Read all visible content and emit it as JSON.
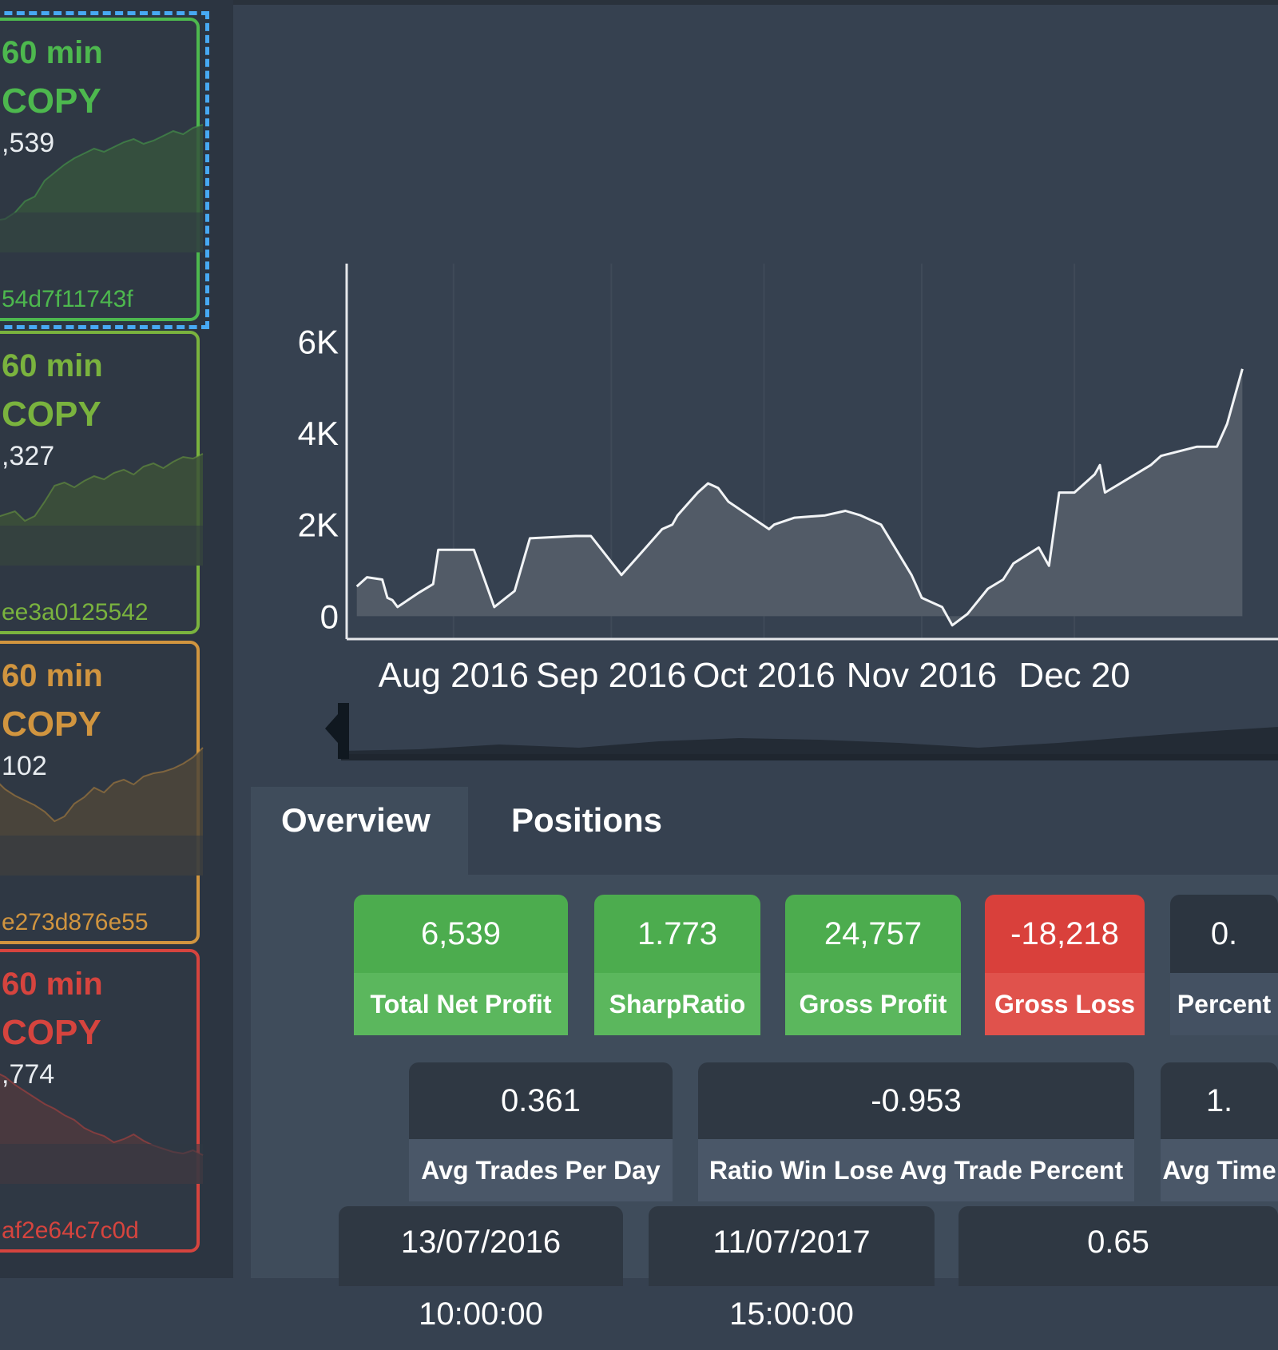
{
  "strategies": [
    {
      "period": "60 min",
      "action": "COPY",
      "profit": ",539",
      "id": "54d7f11743f",
      "color": "#4db84e",
      "fill": "#36533d"
    },
    {
      "period": "60 min",
      "action": "COPY",
      "profit": ",327",
      "id": "ee3a0125542",
      "color": "#7ab33e",
      "fill": "#3c5138"
    },
    {
      "period": "60 min",
      "action": "COPY",
      "profit": "102",
      "id": "e273d876e55",
      "color": "#d1953f",
      "fill": "#4d463a"
    },
    {
      "period": "60 min",
      "action": "COPY",
      "profit": ",774",
      "id": "af2e64c7c0d",
      "color": "#d6443e",
      "fill": "#4d3a3e"
    }
  ],
  "chart_data": {
    "type": "area",
    "yticks": [
      "0",
      "2K",
      "4K",
      "6K"
    ],
    "xticks": [
      "Aug 2016",
      "Sep 2016",
      "Oct 2016",
      "Nov 2016",
      "Dec 20"
    ],
    "ylim": [
      -500,
      7700
    ],
    "x": [
      "2016-07-13",
      "2016-07-15",
      "2016-07-18",
      "2016-07-19",
      "2016-07-20",
      "2016-07-21",
      "2016-07-25",
      "2016-07-28",
      "2016-07-29",
      "2016-08-01",
      "2016-08-05",
      "2016-08-09",
      "2016-08-13",
      "2016-08-16",
      "2016-08-25",
      "2016-08-28",
      "2016-09-03",
      "2016-09-07",
      "2016-09-11",
      "2016-09-13",
      "2016-09-14",
      "2016-09-18",
      "2016-09-20",
      "2016-09-22",
      "2016-09-24",
      "2016-10-02",
      "2016-10-03",
      "2016-10-07",
      "2016-10-13",
      "2016-10-17",
      "2016-10-20",
      "2016-10-24",
      "2016-10-30",
      "2016-11-01",
      "2016-11-03",
      "2016-11-05",
      "2016-11-07",
      "2016-11-10",
      "2016-11-14",
      "2016-11-17",
      "2016-11-19",
      "2016-11-24",
      "2016-11-26",
      "2016-11-28",
      "2016-12-01",
      "2016-12-05",
      "2016-12-06",
      "2016-12-07",
      "2016-12-13",
      "2016-12-16",
      "2016-12-18",
      "2016-12-25",
      "2016-12-29",
      "2016-12-31",
      "2017-01-03"
    ],
    "values": [
      650,
      850,
      800,
      400,
      350,
      200,
      500,
      700,
      1450,
      1450,
      1450,
      200,
      550,
      1700,
      1750,
      1750,
      900,
      1400,
      1900,
      2000,
      2200,
      2700,
      2900,
      2800,
      2500,
      1900,
      2000,
      2150,
      2200,
      2300,
      2200,
      2000,
      900,
      400,
      300,
      200,
      -200,
      50,
      600,
      800,
      1150,
      1500,
      1100,
      2700,
      2700,
      3100,
      3300,
      2700,
      3100,
      3300,
      3500,
      3700,
      3700,
      4200,
      5400
    ]
  },
  "tabs": {
    "overview": "Overview",
    "positions": "Positions"
  },
  "stats_row1": [
    {
      "value": "6,539",
      "label": "Total Net Profit",
      "tone": "green"
    },
    {
      "value": "1.773",
      "label": "SharpRatio",
      "tone": "green"
    },
    {
      "value": "24,757",
      "label": "Gross Profit",
      "tone": "green"
    },
    {
      "value": "-18,218",
      "label": "Gross Loss",
      "tone": "red"
    },
    {
      "value": "0.",
      "label": "Percent",
      "tone": "dark"
    }
  ],
  "stats_row2": [
    {
      "value": "0.361",
      "label": "Avg Trades Per Day"
    },
    {
      "value": "-0.953",
      "label": "Ratio Win Lose Avg Trade Percent"
    },
    {
      "value": "1.",
      "label": "Avg Time"
    }
  ],
  "stats_row3": [
    "13/07/2016 10:00:00",
    "11/07/2017 15:00:00",
    "0.65"
  ]
}
